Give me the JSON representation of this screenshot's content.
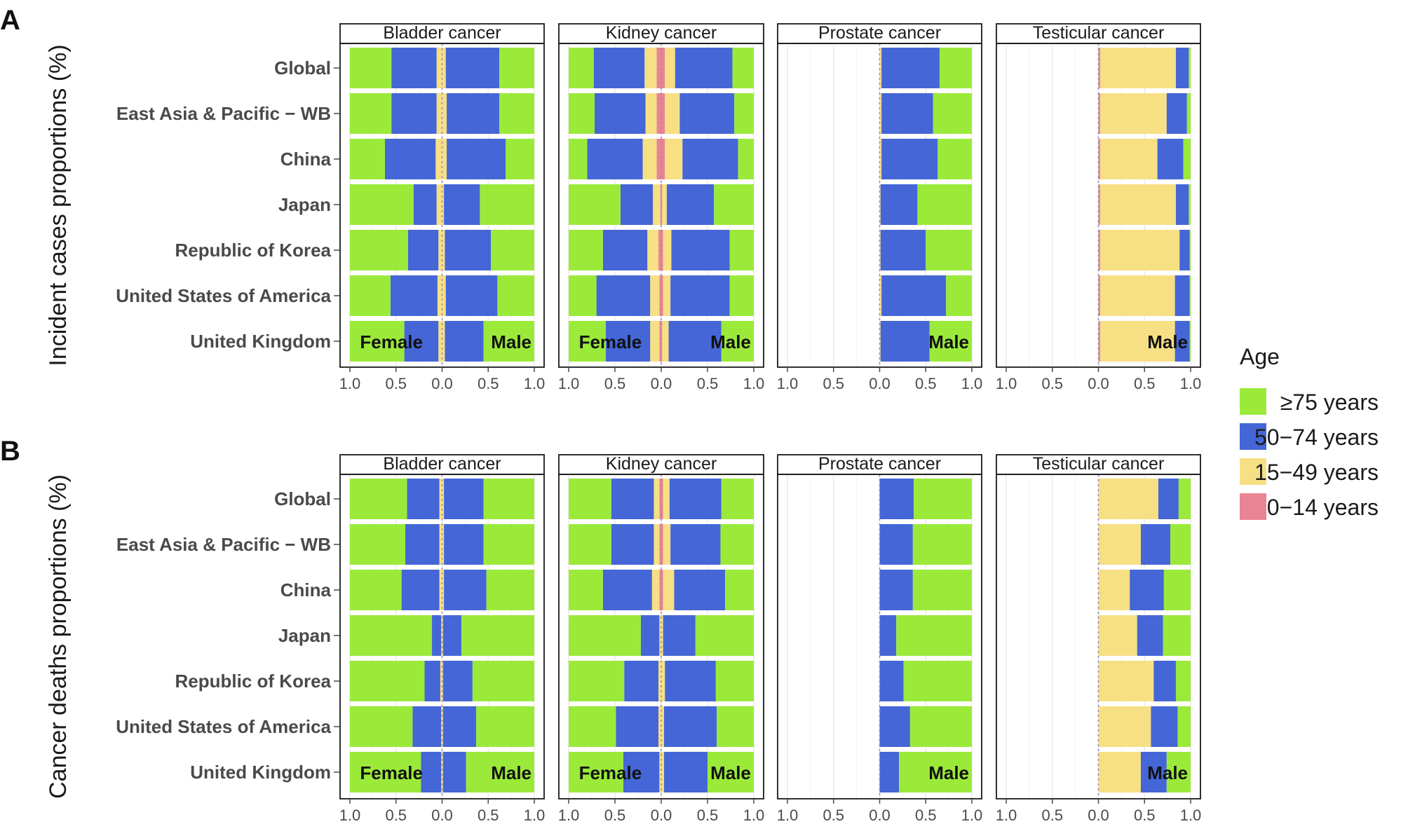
{
  "chart_data": {
    "type": "bar",
    "subtype": "faceted diverging horizontal stacked bar (proportions by age group)",
    "x_tick_labels": [
      "1.0",
      "0.5",
      "0.0",
      "0.5",
      "1.0"
    ],
    "xlim": [
      -1,
      1
    ],
    "regions": [
      "Global",
      "East Asia & Pacific − WB",
      "China",
      "Japan",
      "Republic of Korea",
      "United States of America",
      "United Kingdom"
    ],
    "cancers": [
      "Bladder cancer",
      "Kidney cancer",
      "Prostate cancer",
      "Testicular cancer"
    ],
    "sex_labels": {
      "female": "Female",
      "male": "Male"
    },
    "age_groups": [
      "≥75 years",
      "50−74 years",
      "15−49 years",
      "0−14 years"
    ],
    "age_keys": [
      "a75",
      "a50",
      "a15",
      "a0"
    ],
    "legend": {
      "title": "Age",
      "items": [
        {
          "label": "≥75 years",
          "color": "#9BEA3A"
        },
        {
          "label": "50−74 years",
          "color": "#4466D6"
        },
        {
          "label": "15−49 years",
          "color": "#F7DF84"
        },
        {
          "label": "0−14 years",
          "color": "#E88493"
        }
      ]
    },
    "panels": [
      {
        "letter": "A",
        "ylabel": "Incident cases proportions (%)",
        "facets": [
          {
            "cancer": "Bladder cancer",
            "female": [
              [
                0.45,
                0.49,
                0.06,
                0
              ],
              [
                0.45,
                0.49,
                0.06,
                0
              ],
              [
                0.38,
                0.55,
                0.07,
                0
              ],
              [
                0.69,
                0.25,
                0.06,
                0
              ],
              [
                0.63,
                0.33,
                0.04,
                0
              ],
              [
                0.44,
                0.51,
                0.05,
                0
              ],
              [
                0.59,
                0.37,
                0.04,
                0
              ]
            ],
            "male": [
              [
                0.38,
                0.58,
                0.04,
                0
              ],
              [
                0.38,
                0.57,
                0.05,
                0
              ],
              [
                0.31,
                0.64,
                0.05,
                0
              ],
              [
                0.59,
                0.39,
                0.02,
                0
              ],
              [
                0.47,
                0.5,
                0.03,
                0
              ],
              [
                0.4,
                0.56,
                0.04,
                0
              ],
              [
                0.55,
                0.42,
                0.03,
                0
              ]
            ]
          },
          {
            "cancer": "Kidney cancer",
            "female": [
              [
                0.27,
                0.55,
                0.13,
                0.05
              ],
              [
                0.28,
                0.55,
                0.12,
                0.05
              ],
              [
                0.2,
                0.6,
                0.15,
                0.05
              ],
              [
                0.56,
                0.35,
                0.08,
                0.01
              ],
              [
                0.37,
                0.48,
                0.12,
                0.03
              ],
              [
                0.3,
                0.58,
                0.1,
                0.02
              ],
              [
                0.4,
                0.48,
                0.1,
                0.02
              ]
            ],
            "male": [
              [
                0.23,
                0.62,
                0.11,
                0.04
              ],
              [
                0.21,
                0.59,
                0.16,
                0.04
              ],
              [
                0.17,
                0.6,
                0.19,
                0.04
              ],
              [
                0.43,
                0.51,
                0.05,
                0.01
              ],
              [
                0.26,
                0.63,
                0.09,
                0.02
              ],
              [
                0.26,
                0.64,
                0.08,
                0.02
              ],
              [
                0.35,
                0.57,
                0.07,
                0.01
              ]
            ]
          },
          {
            "cancer": "Prostate cancer",
            "female": [],
            "male": [
              [
                0.35,
                0.63,
                0.02,
                0
              ],
              [
                0.42,
                0.56,
                0.02,
                0
              ],
              [
                0.37,
                0.61,
                0.02,
                0
              ],
              [
                0.59,
                0.4,
                0.01,
                0
              ],
              [
                0.5,
                0.49,
                0.01,
                0
              ],
              [
                0.28,
                0.7,
                0.02,
                0
              ],
              [
                0.46,
                0.53,
                0.01,
                0
              ]
            ]
          },
          {
            "cancer": "Testicular cancer",
            "female": [],
            "male": [
              [
                0.02,
                0.14,
                0.82,
                0.02
              ],
              [
                0.04,
                0.22,
                0.72,
                0.02
              ],
              [
                0.08,
                0.28,
                0.62,
                0.02
              ],
              [
                0.02,
                0.14,
                0.82,
                0.02
              ],
              [
                0.01,
                0.11,
                0.86,
                0.02
              ],
              [
                0.01,
                0.16,
                0.81,
                0.02
              ],
              [
                0.01,
                0.16,
                0.81,
                0.02
              ]
            ]
          }
        ]
      },
      {
        "letter": "B",
        "ylabel": "Cancer deaths proportions (%)",
        "facets": [
          {
            "cancer": "Bladder cancer",
            "female": [
              [
                0.62,
                0.35,
                0.03,
                0
              ],
              [
                0.6,
                0.37,
                0.03,
                0
              ],
              [
                0.56,
                0.41,
                0.03,
                0
              ],
              [
                0.89,
                0.1,
                0.01,
                0
              ],
              [
                0.81,
                0.17,
                0.02,
                0
              ],
              [
                0.68,
                0.31,
                0.01,
                0
              ],
              [
                0.77,
                0.22,
                0.01,
                0
              ]
            ],
            "male": [
              [
                0.55,
                0.43,
                0.02,
                0
              ],
              [
                0.55,
                0.43,
                0.02,
                0
              ],
              [
                0.52,
                0.46,
                0.02,
                0
              ],
              [
                0.79,
                0.2,
                0.01,
                0
              ],
              [
                0.67,
                0.32,
                0.01,
                0
              ],
              [
                0.63,
                0.36,
                0.01,
                0
              ],
              [
                0.74,
                0.25,
                0.01,
                0
              ]
            ]
          },
          {
            "cancer": "Kidney cancer",
            "female": [
              [
                0.46,
                0.46,
                0.06,
                0.02
              ],
              [
                0.46,
                0.46,
                0.06,
                0.02
              ],
              [
                0.37,
                0.53,
                0.08,
                0.02
              ],
              [
                0.78,
                0.2,
                0.02,
                0
              ],
              [
                0.6,
                0.37,
                0.03,
                0
              ],
              [
                0.51,
                0.46,
                0.03,
                0
              ],
              [
                0.59,
                0.39,
                0.02,
                0
              ]
            ],
            "male": [
              [
                0.35,
                0.56,
                0.07,
                0.02
              ],
              [
                0.36,
                0.54,
                0.08,
                0.02
              ],
              [
                0.31,
                0.55,
                0.12,
                0.02
              ],
              [
                0.63,
                0.35,
                0.02,
                0
              ],
              [
                0.41,
                0.55,
                0.04,
                0
              ],
              [
                0.4,
                0.57,
                0.03,
                0
              ],
              [
                0.5,
                0.47,
                0.03,
                0
              ]
            ]
          },
          {
            "cancer": "Prostate cancer",
            "female": [],
            "male": [
              [
                0.63,
                0.37,
                0,
                0
              ],
              [
                0.64,
                0.36,
                0,
                0
              ],
              [
                0.64,
                0.36,
                0,
                0
              ],
              [
                0.82,
                0.18,
                0,
                0
              ],
              [
                0.74,
                0.26,
                0,
                0
              ],
              [
                0.67,
                0.33,
                0,
                0
              ],
              [
                0.79,
                0.21,
                0,
                0
              ]
            ]
          },
          {
            "cancer": "Testicular cancer",
            "female": [],
            "male": [
              [
                0.13,
                0.22,
                0.65,
                0
              ],
              [
                0.22,
                0.32,
                0.46,
                0
              ],
              [
                0.29,
                0.37,
                0.34,
                0
              ],
              [
                0.3,
                0.28,
                0.42,
                0
              ],
              [
                0.16,
                0.24,
                0.6,
                0
              ],
              [
                0.14,
                0.29,
                0.57,
                0
              ],
              [
                0.26,
                0.28,
                0.46,
                0
              ]
            ]
          }
        ]
      }
    ]
  }
}
